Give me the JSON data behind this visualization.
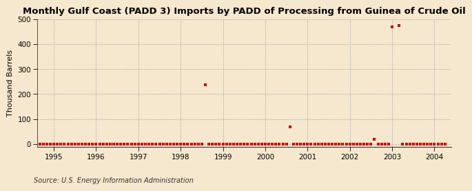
{
  "title": "Monthly Gulf Coast (PADD 3) Imports by PADD of Processing from Guinea of Crude Oil",
  "ylabel": "Thousand Barrels",
  "source": "Source: U.S. Energy Information Administration",
  "background_color": "#F5E8CE",
  "plot_background_color": "#FDF6E3",
  "title_fontsize": 10,
  "title_fontfamily": "sans-serif",
  "xlim_start": 1994.6,
  "xlim_end": 2004.4,
  "ylim_min": -12,
  "ylim_max": 500,
  "yticks": [
    0,
    100,
    200,
    300,
    400,
    500
  ],
  "xticks": [
    1995,
    1996,
    1997,
    1998,
    1999,
    2000,
    2001,
    2002,
    2003,
    2004
  ],
  "marker_color": "#CC0000",
  "marker_size": 8,
  "data_points": [
    [
      1994.583,
      0
    ],
    [
      1994.667,
      0
    ],
    [
      1994.75,
      0
    ],
    [
      1994.833,
      0
    ],
    [
      1994.917,
      0
    ],
    [
      1995.0,
      0
    ],
    [
      1995.083,
      0
    ],
    [
      1995.167,
      0
    ],
    [
      1995.25,
      0
    ],
    [
      1995.333,
      0
    ],
    [
      1995.417,
      0
    ],
    [
      1995.5,
      0
    ],
    [
      1995.583,
      0
    ],
    [
      1995.667,
      0
    ],
    [
      1995.75,
      0
    ],
    [
      1995.833,
      0
    ],
    [
      1995.917,
      0
    ],
    [
      1996.0,
      0
    ],
    [
      1996.083,
      0
    ],
    [
      1996.167,
      0
    ],
    [
      1996.25,
      0
    ],
    [
      1996.333,
      0
    ],
    [
      1996.417,
      0
    ],
    [
      1996.5,
      0
    ],
    [
      1996.583,
      0
    ],
    [
      1996.667,
      0
    ],
    [
      1996.75,
      0
    ],
    [
      1996.833,
      0
    ],
    [
      1996.917,
      0
    ],
    [
      1997.0,
      0
    ],
    [
      1997.083,
      0
    ],
    [
      1997.167,
      0
    ],
    [
      1997.25,
      0
    ],
    [
      1997.333,
      0
    ],
    [
      1997.417,
      0
    ],
    [
      1997.5,
      0
    ],
    [
      1997.583,
      0
    ],
    [
      1997.667,
      0
    ],
    [
      1997.75,
      0
    ],
    [
      1997.833,
      0
    ],
    [
      1997.917,
      0
    ],
    [
      1998.0,
      0
    ],
    [
      1998.083,
      0
    ],
    [
      1998.167,
      0
    ],
    [
      1998.25,
      0
    ],
    [
      1998.333,
      0
    ],
    [
      1998.417,
      0
    ],
    [
      1998.5,
      0
    ],
    [
      1998.583,
      238
    ],
    [
      1998.667,
      0
    ],
    [
      1998.75,
      0
    ],
    [
      1998.833,
      0
    ],
    [
      1998.917,
      0
    ],
    [
      1999.0,
      0
    ],
    [
      1999.083,
      0
    ],
    [
      1999.167,
      0
    ],
    [
      1999.25,
      0
    ],
    [
      1999.333,
      0
    ],
    [
      1999.417,
      0
    ],
    [
      1999.5,
      0
    ],
    [
      1999.583,
      0
    ],
    [
      1999.667,
      0
    ],
    [
      1999.75,
      0
    ],
    [
      1999.833,
      0
    ],
    [
      1999.917,
      0
    ],
    [
      2000.0,
      0
    ],
    [
      2000.083,
      0
    ],
    [
      2000.167,
      0
    ],
    [
      2000.25,
      0
    ],
    [
      2000.333,
      0
    ],
    [
      2000.417,
      0
    ],
    [
      2000.5,
      0
    ],
    [
      2000.583,
      68
    ],
    [
      2000.667,
      0
    ],
    [
      2000.75,
      0
    ],
    [
      2000.833,
      0
    ],
    [
      2000.917,
      0
    ],
    [
      2001.0,
      0
    ],
    [
      2001.083,
      0
    ],
    [
      2001.167,
      0
    ],
    [
      2001.25,
      0
    ],
    [
      2001.333,
      0
    ],
    [
      2001.417,
      0
    ],
    [
      2001.5,
      0
    ],
    [
      2001.583,
      0
    ],
    [
      2001.667,
      0
    ],
    [
      2001.75,
      0
    ],
    [
      2001.833,
      0
    ],
    [
      2001.917,
      0
    ],
    [
      2002.0,
      0
    ],
    [
      2002.083,
      0
    ],
    [
      2002.167,
      0
    ],
    [
      2002.25,
      0
    ],
    [
      2002.333,
      0
    ],
    [
      2002.417,
      0
    ],
    [
      2002.5,
      0
    ],
    [
      2002.583,
      18
    ],
    [
      2002.667,
      0
    ],
    [
      2002.75,
      0
    ],
    [
      2002.833,
      0
    ],
    [
      2002.917,
      0
    ],
    [
      2003.0,
      470
    ],
    [
      2003.167,
      476
    ],
    [
      2003.25,
      0
    ],
    [
      2003.333,
      0
    ],
    [
      2003.417,
      0
    ],
    [
      2003.5,
      0
    ],
    [
      2003.583,
      0
    ],
    [
      2003.667,
      0
    ],
    [
      2003.75,
      0
    ],
    [
      2003.833,
      0
    ],
    [
      2003.917,
      0
    ],
    [
      2004.0,
      0
    ],
    [
      2004.083,
      0
    ],
    [
      2004.167,
      0
    ],
    [
      2004.25,
      0
    ]
  ]
}
